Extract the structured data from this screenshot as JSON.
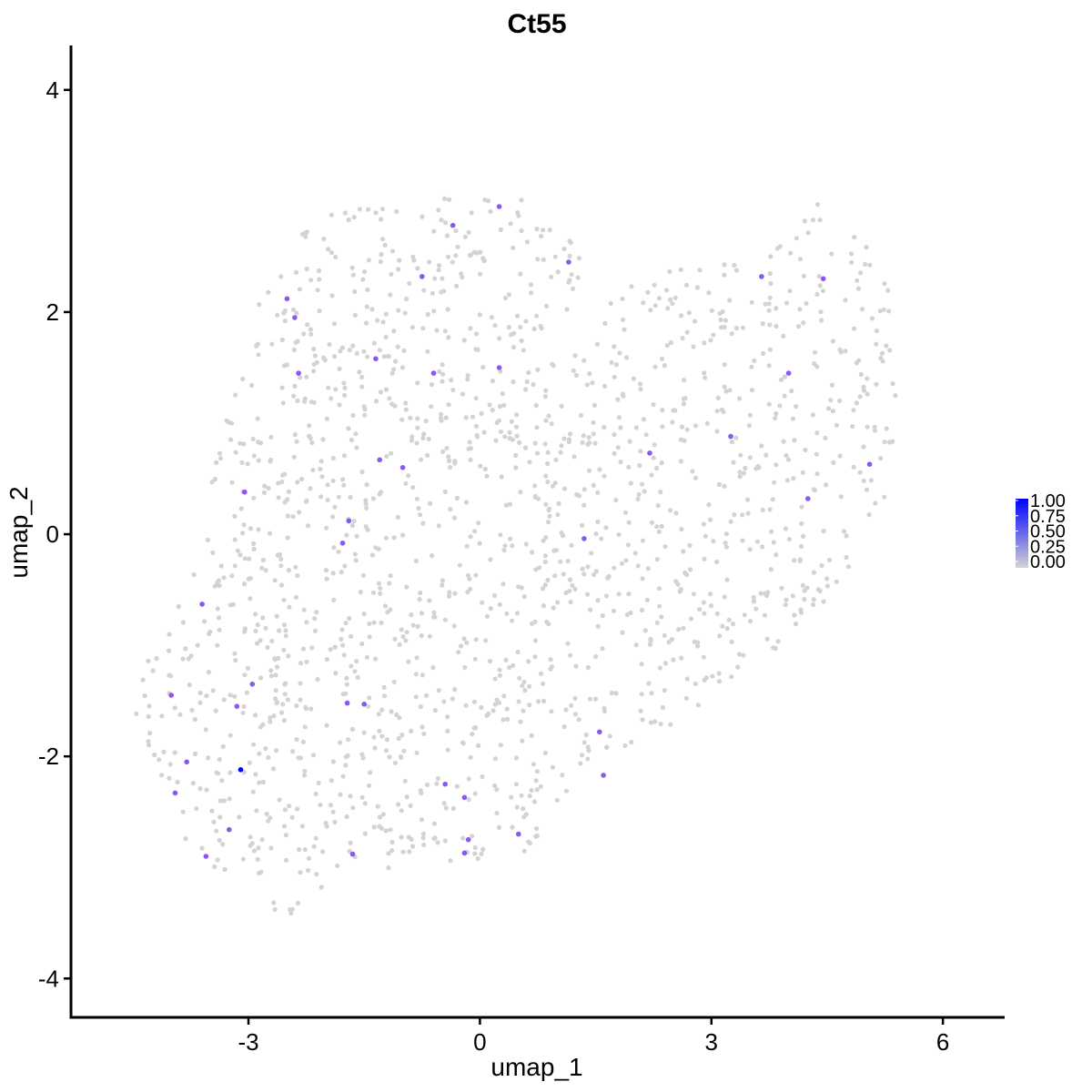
{
  "chart_data": {
    "type": "scatter",
    "title": "Ct55",
    "xlabel": "umap_1",
    "ylabel": "umap_2",
    "xlim": [
      -5.3,
      6.8
    ],
    "ylim": [
      -4.35,
      4.4
    ],
    "x_ticks": [
      -3,
      0,
      3,
      6
    ],
    "y_ticks": [
      -4,
      -2,
      0,
      2,
      4
    ],
    "x_tick_labels": [
      "-3",
      "0",
      "3",
      "6"
    ],
    "y_tick_labels": [
      "-4",
      "-2",
      "0",
      "2",
      "4"
    ],
    "grid": false,
    "legend": {
      "position": "right",
      "type": "colorbar",
      "range": [
        0,
        1
      ],
      "labels": [
        "1.00",
        "0.75",
        "0.50",
        "0.25",
        "0.00"
      ],
      "low_color": "#d3d3d3",
      "high_color": "#0000ff"
    },
    "background_point_color": "#d3d3d3",
    "expressing_points": [
      {
        "x": 0.25,
        "y": 2.95,
        "v": 0.6
      },
      {
        "x": -0.35,
        "y": 2.78,
        "v": 0.6
      },
      {
        "x": 1.15,
        "y": 2.45,
        "v": 0.6
      },
      {
        "x": -0.75,
        "y": 2.32,
        "v": 0.6
      },
      {
        "x": -2.5,
        "y": 2.12,
        "v": 0.6
      },
      {
        "x": -2.4,
        "y": 1.95,
        "v": 0.6
      },
      {
        "x": -1.35,
        "y": 1.58,
        "v": 0.6
      },
      {
        "x": 0.25,
        "y": 1.5,
        "v": 0.6
      },
      {
        "x": -0.6,
        "y": 1.45,
        "v": 0.6
      },
      {
        "x": -2.35,
        "y": 1.45,
        "v": 0.6
      },
      {
        "x": 3.65,
        "y": 2.32,
        "v": 0.6
      },
      {
        "x": 4.45,
        "y": 2.3,
        "v": 0.6
      },
      {
        "x": 4.0,
        "y": 1.45,
        "v": 0.6
      },
      {
        "x": 3.25,
        "y": 0.88,
        "v": 0.6
      },
      {
        "x": 2.2,
        "y": 0.73,
        "v": 0.6
      },
      {
        "x": 5.05,
        "y": 0.63,
        "v": 0.6
      },
      {
        "x": -1.3,
        "y": 0.67,
        "v": 0.6
      },
      {
        "x": -1.0,
        "y": 0.6,
        "v": 0.6
      },
      {
        "x": -3.05,
        "y": 0.38,
        "v": 0.6
      },
      {
        "x": 4.25,
        "y": 0.32,
        "v": 0.6
      },
      {
        "x": -1.7,
        "y": 0.12,
        "v": 0.6
      },
      {
        "x": -1.78,
        "y": -0.08,
        "v": 0.6
      },
      {
        "x": 1.35,
        "y": -0.04,
        "v": 0.6
      },
      {
        "x": -3.6,
        "y": -0.63,
        "v": 0.6
      },
      {
        "x": -2.95,
        "y": -1.35,
        "v": 0.6
      },
      {
        "x": -4.0,
        "y": -1.45,
        "v": 0.6
      },
      {
        "x": -3.15,
        "y": -1.55,
        "v": 0.6
      },
      {
        "x": -1.72,
        "y": -1.52,
        "v": 0.6
      },
      {
        "x": -1.5,
        "y": -1.53,
        "v": 0.6
      },
      {
        "x": 1.55,
        "y": -1.78,
        "v": 0.6
      },
      {
        "x": -3.8,
        "y": -2.05,
        "v": 0.6
      },
      {
        "x": -3.1,
        "y": -2.12,
        "v": 1.0
      },
      {
        "x": 1.6,
        "y": -2.17,
        "v": 0.6
      },
      {
        "x": -0.45,
        "y": -2.25,
        "v": 0.6
      },
      {
        "x": -0.2,
        "y": -2.37,
        "v": 0.6
      },
      {
        "x": -3.95,
        "y": -2.33,
        "v": 0.6
      },
      {
        "x": -3.25,
        "y": -2.66,
        "v": 0.6
      },
      {
        "x": 0.5,
        "y": -2.7,
        "v": 0.6
      },
      {
        "x": -0.15,
        "y": -2.75,
        "v": 0.6
      },
      {
        "x": -1.65,
        "y": -2.88,
        "v": 0.6
      },
      {
        "x": -0.2,
        "y": -2.87,
        "v": 0.6
      },
      {
        "x": -3.55,
        "y": -2.9,
        "v": 0.6
      }
    ]
  }
}
